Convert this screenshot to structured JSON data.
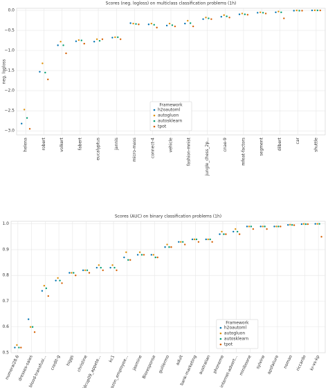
{
  "chart_data": [
    {
      "type": "scatter",
      "title": "Scores (neg. logloss) on  multiclass classification problems (1h)",
      "y_label": "neg. logloss",
      "legend_title": "Framework",
      "legend": "lower center",
      "grid": true,
      "categories": [
        "helena",
        "robert",
        "volkert",
        "fabert",
        "eucalyptus",
        "jannis",
        "micro-mass",
        "connect-4",
        "vehicle",
        "fashion-mnist",
        "jungle_chess_2p...",
        "cnae-9",
        "mfeat-factors",
        "segment",
        "dilbert",
        "car",
        "shuttle"
      ],
      "ylim": [
        -3.1,
        0.05
      ],
      "yticks": [
        {
          "value": -3.0,
          "label": "−3.0"
        },
        {
          "value": -2.5,
          "label": "−2.5"
        },
        {
          "value": -2.0,
          "label": "−2.0"
        },
        {
          "value": -1.5,
          "label": "−1.5"
        },
        {
          "value": -1.0,
          "label": "−1.0"
        },
        {
          "value": -0.5,
          "label": "−0.5"
        },
        {
          "value": 0,
          "label": "0.0"
        }
      ],
      "series": [
        {
          "name": "h2oautoml",
          "color": "#0173b2",
          "values": [
            -2.82,
            -1.53,
            -0.87,
            -0.77,
            -0.78,
            -0.68,
            -0.32,
            -0.35,
            -0.38,
            -0.33,
            -0.22,
            -0.16,
            -0.1,
            -0.06,
            -0.05,
            -0.01,
            -0.002
          ]
        },
        {
          "name": "autogluon",
          "color": "#de8f05",
          "values": [
            -2.47,
            -1.32,
            -0.78,
            -0.74,
            -0.72,
            -0.67,
            -0.33,
            -0.33,
            -0.33,
            -0.26,
            -0.18,
            -0.12,
            -0.08,
            -0.05,
            -0.03,
            -0.003,
            -0.001
          ]
        },
        {
          "name": "autosklearn",
          "color": "#029e73",
          "values": [
            -2.68,
            -1.55,
            -0.87,
            -0.75,
            -0.76,
            -0.67,
            -0.34,
            -0.36,
            -0.37,
            -0.32,
            -0.2,
            -0.15,
            -0.1,
            -0.06,
            -0.05,
            -0.01,
            -0.002
          ]
        },
        {
          "name": "tpot",
          "color": "#d55e00",
          "values": [
            -2.95,
            -1.72,
            -1.07,
            -0.83,
            -0.72,
            -0.72,
            -0.35,
            -0.43,
            -0.4,
            -0.4,
            -0.22,
            -0.18,
            -0.11,
            -0.08,
            -0.2,
            -0.01,
            -0.003
          ]
        }
      ]
    },
    {
      "type": "scatter",
      "title": "Scores (AUC) on  binary classification problems (1h)",
      "y_label": "AUC",
      "legend_title": "Framework",
      "legend": "lower right",
      "grid": true,
      "categories": [
        "numerai28.6",
        "dresses-sales",
        "blood-transfusi...",
        "credit-g",
        "higgs",
        "christine",
        "kddcup09_appete...",
        "kc1",
        "amazon_employee...",
        "jasmine",
        "Bioresponse",
        "guillermo",
        "adult",
        "bank-marketing",
        "australian",
        "phoneme",
        "internet-advert...",
        "miniboone",
        "sylvine",
        "apsfailure",
        "nomao",
        "riccardo",
        "kr-vs-kp"
      ],
      "ylim": [
        0.5,
        1.01
      ],
      "yticks": [
        0.5,
        0.6,
        0.7,
        0.8,
        0.9,
        {
          "value": 1,
          "label": "1.0"
        }
      ],
      "series": [
        {
          "name": "h2oautoml",
          "color": "#0173b2",
          "values": [
            0.52,
            0.63,
            0.74,
            0.78,
            0.81,
            0.82,
            0.83,
            0.83,
            0.87,
            0.88,
            0.88,
            0.91,
            0.93,
            0.94,
            0.94,
            0.96,
            0.97,
            0.99,
            0.99,
            0.99,
            0.996,
            0.999,
            1
          ]
        },
        {
          "name": "autogluon",
          "color": "#de8f05",
          "values": [
            0.53,
            0.6,
            0.76,
            0.79,
            0.81,
            0.82,
            0.84,
            0.84,
            0.89,
            0.89,
            0.88,
            0.92,
            0.93,
            0.94,
            0.94,
            0.97,
            0.98,
            0.99,
            0.99,
            0.99,
            0.997,
            1,
            1
          ]
        },
        {
          "name": "autosklearn",
          "color": "#029e73",
          "values": [
            0.52,
            0.6,
            0.75,
            0.78,
            0.81,
            0.82,
            0.83,
            0.83,
            0.86,
            0.88,
            0.87,
            0.91,
            0.93,
            0.94,
            0.94,
            0.96,
            0.97,
            0.99,
            0.99,
            0.99,
            0.996,
            0.999,
            1
          ]
        },
        {
          "name": "tpot",
          "color": "#d55e00",
          "values": [
            0.52,
            0.58,
            0.72,
            0.77,
            0.8,
            0.81,
            0.82,
            0.82,
            0.86,
            0.88,
            0.87,
            0.91,
            0.92,
            0.93,
            0.93,
            0.96,
            0.96,
            0.98,
            0.98,
            0.99,
            0.995,
            0.999,
            0.95
          ]
        }
      ]
    }
  ]
}
